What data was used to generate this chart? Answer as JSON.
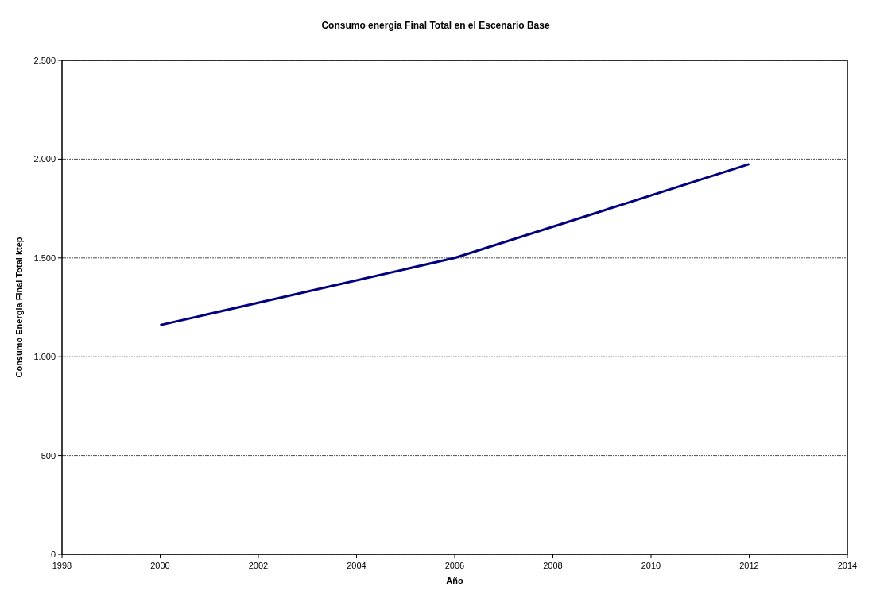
{
  "chart_data": {
    "type": "line",
    "title": "Consumo energia Final Total en el Escenario Base",
    "xlabel": "Año",
    "ylabel": "Consumo Energia Final Total ktep",
    "x": [
      2000,
      2006,
      2012
    ],
    "series": [
      {
        "color": "#000080",
        "values": [
          1160,
          1500,
          1975
        ]
      }
    ],
    "xlim": [
      1998,
      2014
    ],
    "xticks": [
      1998,
      2000,
      2002,
      2004,
      2006,
      2008,
      2010,
      2012,
      2014
    ],
    "ylim": [
      0,
      2500
    ],
    "yticks": [
      0,
      500,
      {
        "value": 1000,
        "label": "1.000"
      },
      {
        "value": 1500,
        "label": "1.500"
      },
      {
        "value": 2000,
        "label": "2.000"
      },
      {
        "value": 2500,
        "label": "2.500"
      }
    ],
    "grid": "y",
    "marker": "none",
    "line_style": "solid"
  }
}
